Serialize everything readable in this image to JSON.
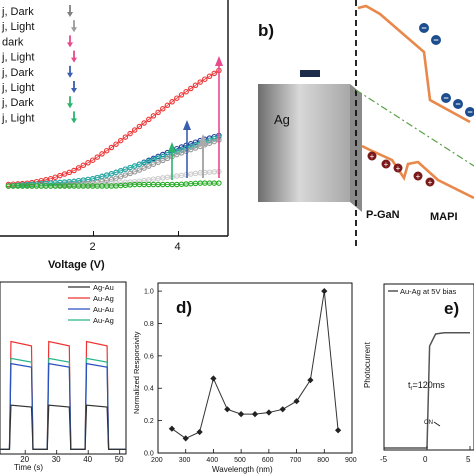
{
  "panel_a": {
    "legend": [
      {
        "label": "j, Dark",
        "color": "#808080"
      },
      {
        "label": "j, Light",
        "color": "#9a9a9a"
      },
      {
        "label": "dark",
        "color": "#e84a8c"
      },
      {
        "label": "j, Light",
        "color": "#e84a8c"
      },
      {
        "label": "j, Dark",
        "color": "#3a5fb0"
      },
      {
        "label": "j, Light",
        "color": "#3a5fb0"
      },
      {
        "label": "j, Dark",
        "color": "#2bb56c"
      },
      {
        "label": "j, Light",
        "color": "#2bb56c"
      }
    ]
  },
  "panel_b": {
    "letter": "b)",
    "electrode_label": "Ag",
    "left_label": "P-GaN",
    "right_label": "MAPI",
    "electron_symbol": "−",
    "hole_symbol": "+"
  },
  "chart_data": [
    {
      "panel": "a",
      "type": "scatter",
      "xlabel": "Voltage (V)",
      "xticks": [
        2,
        4
      ],
      "xlim": [
        -0.2,
        5.0
      ],
      "ylim": [
        0,
        1
      ],
      "series": [
        {
          "color": "#e33",
          "x": [
            0,
            0.5,
            1,
            1.5,
            2,
            2.5,
            3,
            3.5,
            4,
            4.5,
            5
          ],
          "y": [
            0.01,
            0.02,
            0.05,
            0.1,
            0.18,
            0.28,
            0.39,
            0.5,
            0.61,
            0.71,
            0.8
          ]
        },
        {
          "color": "#1f3f9a",
          "x": [
            0,
            0.5,
            1,
            1.5,
            2,
            2.5,
            3,
            3.5,
            4,
            4.5,
            5
          ],
          "y": [
            0.0,
            0.01,
            0.02,
            0.03,
            0.05,
            0.09,
            0.14,
            0.2,
            0.26,
            0.31,
            0.35
          ]
        },
        {
          "color": "#2bb5a5",
          "x": [
            0,
            0.5,
            1,
            1.5,
            2,
            2.5,
            3,
            3.5,
            4,
            4.5,
            5
          ],
          "y": [
            0.0,
            0.01,
            0.02,
            0.03,
            0.05,
            0.09,
            0.14,
            0.19,
            0.24,
            0.29,
            0.34
          ]
        },
        {
          "color": "#999",
          "x": [
            0,
            0.5,
            1,
            1.5,
            2,
            2.5,
            3,
            3.5,
            4,
            4.5,
            5
          ],
          "y": [
            0.0,
            0.0,
            0.0,
            0.01,
            0.02,
            0.05,
            0.1,
            0.16,
            0.22,
            0.27,
            0.32
          ]
        },
        {
          "color": "#ccc",
          "x": [
            0,
            0.5,
            1,
            1.5,
            2,
            2.5,
            3,
            3.5,
            4,
            4.5,
            5
          ],
          "y": [
            0.0,
            0.0,
            0.0,
            0.0,
            0.01,
            0.02,
            0.03,
            0.05,
            0.07,
            0.09,
            0.1
          ]
        },
        {
          "color": "#2a2",
          "x": [
            0,
            0.5,
            1,
            1.5,
            2,
            2.5,
            3,
            3.5,
            4,
            4.5,
            5
          ],
          "y": [
            0.0,
            0.0,
            0.0,
            0.0,
            0.0,
            0.0,
            0.01,
            0.01,
            0.01,
            0.02,
            0.02
          ]
        }
      ]
    },
    {
      "panel": "c",
      "type": "line",
      "xlabel": "Time (s)",
      "xticks": [
        20,
        30,
        40,
        50
      ],
      "xlim": [
        12,
        52
      ],
      "legend": [
        {
          "name": "Ag-Au",
          "color": "#333"
        },
        {
          "name": "Au-Ag",
          "color": "#e33"
        },
        {
          "name": "Au-Au",
          "color": "#2a4fc0"
        },
        {
          "name": "Au-Ag",
          "color": "#2bb58a"
        }
      ],
      "on_intervals": [
        [
          15,
          22
        ],
        [
          27,
          34
        ],
        [
          39,
          46
        ]
      ],
      "levels": [
        {
          "color": "#e33",
          "on": 0.85
        },
        {
          "color": "#2bb58a",
          "on": 0.72
        },
        {
          "color": "#2a4fc0",
          "on": 0.68
        },
        {
          "color": "#333",
          "on": 0.36
        }
      ]
    },
    {
      "panel": "d",
      "letter": "d)",
      "type": "line",
      "xlabel": "Wavelength (nm)",
      "ylabel": "Normalized Responsivity",
      "x": [
        250,
        300,
        350,
        400,
        450,
        500,
        550,
        600,
        650,
        700,
        750,
        800,
        850
      ],
      "y": [
        0.15,
        0.09,
        0.13,
        0.46,
        0.27,
        0.24,
        0.24,
        0.25,
        0.27,
        0.32,
        0.45,
        1.0,
        0.14
      ],
      "xlim": [
        200,
        900
      ],
      "ylim": [
        0.0,
        1.05
      ],
      "xticks": [
        200,
        300,
        400,
        500,
        600,
        700,
        800,
        900
      ],
      "yticks": [
        0.0,
        0.2,
        0.4,
        0.6,
        0.8,
        1.0
      ]
    },
    {
      "panel": "e",
      "letter": "e)",
      "type": "line",
      "legend": "Au-Ag at 5V bias",
      "ylabel": "Photocurrent",
      "annotation_time": "t",
      "annotation_sub": "r",
      "annotation_value": "=120ms",
      "marker_label": "ON",
      "xticks": [
        -5,
        0,
        5
      ],
      "x": [
        -5,
        -0.2,
        0,
        0.3,
        1,
        2,
        3,
        5
      ],
      "y": [
        0.0,
        0.0,
        0.0,
        0.85,
        0.95,
        0.96,
        0.96,
        0.96
      ]
    }
  ]
}
